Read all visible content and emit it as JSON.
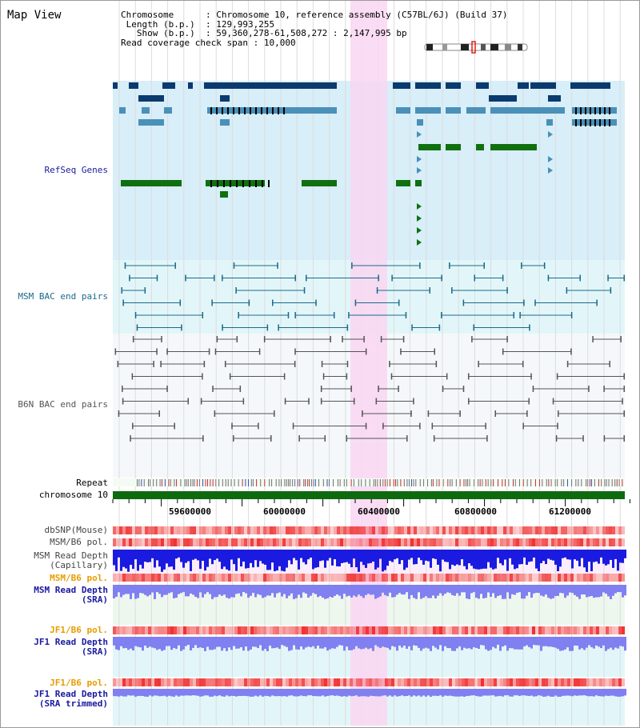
{
  "title": "Map View",
  "header": {
    "chromosome_key": "Chromosome",
    "chromosome_val": "Chromosome 10, reference assembly (C57BL/6J) (Build 37)",
    "length_key": "Length (b.p.)",
    "length_val": "129,993,255",
    "show_key": "Show (b.p.)",
    "show_val": "59,360,278-61,508,272 : 2,147,995 bp",
    "coverage_key": "Read coverage check span",
    "coverage_val": "10,000"
  },
  "tracks": {
    "refseq": "RefSeq Genes",
    "msm_bac": "MSM BAC end pairs",
    "b6n_bac": "B6N BAC end pairs",
    "repeat": "Repeat",
    "chromosome": "chromosome 10",
    "dbsnp": "dbSNP(Mouse)",
    "msm_b6_pol_1": "MSM/B6 pol.",
    "msm_read_depth_cap_1": "MSM Read Depth",
    "msm_read_depth_cap_2": "(Capillary)",
    "msm_b6_pol_2": "MSM/B6 pol.",
    "msm_read_depth_sra_1": "MSM Read Depth",
    "msm_read_depth_sra_2": "(SRA)",
    "jf1_b6_pol_1": "JF1/B6 pol.",
    "jf1_read_depth_sra_1": "JF1 Read Depth",
    "jf1_read_depth_sra_2": "(SRA)",
    "jf1_b6_pol_2": "JF1/B6 pol.",
    "jf1_read_depth_trim_1": "JF1 Read Depth",
    "jf1_read_depth_trim_2": "(SRA trimmed)"
  },
  "axis": {
    "ticks": [
      "59600000",
      "60000000",
      "60400000",
      "60800000",
      "61200000"
    ]
  },
  "colors": {
    "refseq_bg": "#d8eef8",
    "msm_bg": "#e2f6f9",
    "b6n_bg": "#f5f8fa",
    "highlight": "#f9d6f2",
    "gene_dark": "#0b3a6e",
    "gene_mid": "#4a90b8",
    "gene_green": "#107010",
    "bac_msm": "#1a6a8a",
    "bac_b6n": "#555555",
    "label_blue": "#1a1aa0",
    "label_teal": "#1a6a8a",
    "label_orange": "#e89c00",
    "depth_blue": "#1a1ae0",
    "depth_light": "#8080f0"
  }
}
